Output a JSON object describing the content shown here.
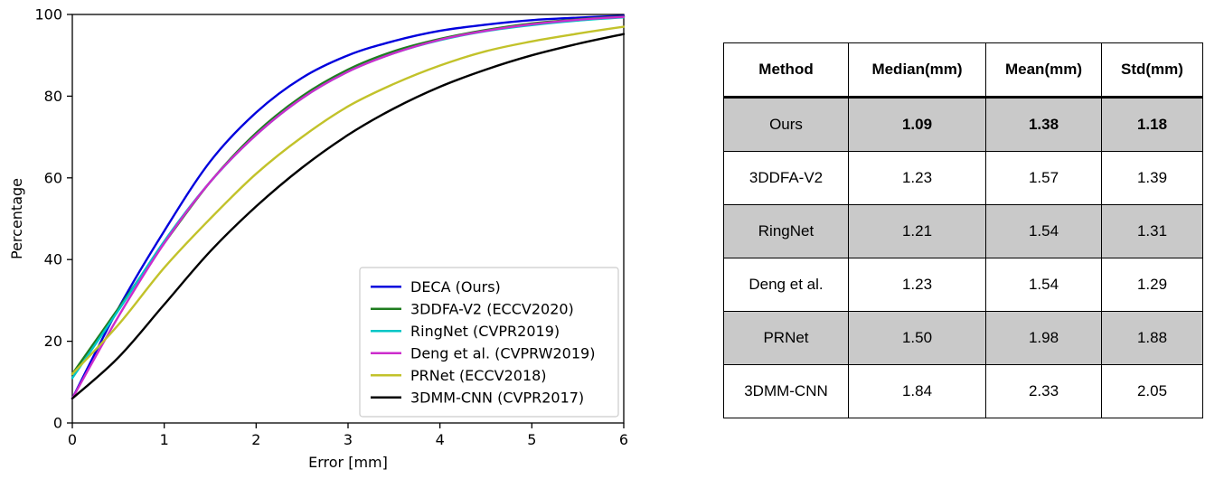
{
  "chart_data": {
    "type": "line",
    "title": "",
    "xlabel": "Error [mm]",
    "ylabel": "Percentage",
    "xlim": [
      0,
      6
    ],
    "ylim": [
      0,
      100
    ],
    "xticks": [
      0,
      1,
      2,
      3,
      4,
      5,
      6
    ],
    "yticks": [
      0,
      20,
      40,
      60,
      80,
      100
    ],
    "grid": false,
    "legend_position": "lower right",
    "x": [
      0,
      0.5,
      1.0,
      1.5,
      2.0,
      2.5,
      3.0,
      3.5,
      4.0,
      4.5,
      5.0,
      5.5,
      6.0
    ],
    "series": [
      {
        "name": "DECA (Ours)",
        "color": "#0000dd",
        "values": [
          6,
          28,
          47,
          64,
          76,
          84.5,
          90,
          93.5,
          96,
          97.5,
          98.6,
          99.2,
          99.7
        ]
      },
      {
        "name": "3DDFA-V2 (ECCV2020)",
        "color": "#1f7d1f",
        "values": [
          12,
          28,
          44,
          59,
          71,
          80,
          86.5,
          91,
          94,
          96.2,
          97.8,
          98.8,
          99.5
        ]
      },
      {
        "name": "RingNet (CVPR2019)",
        "color": "#00c6c6",
        "values": [
          11,
          27.5,
          44.5,
          59,
          70.5,
          79.5,
          86,
          90.5,
          93.7,
          95.9,
          97.4,
          98.5,
          99.3
        ]
      },
      {
        "name": "Deng et al. (CVPRW2019)",
        "color": "#cc2ccc",
        "values": [
          6,
          26,
          44,
          59,
          70.5,
          79.5,
          86,
          90.5,
          93.8,
          96,
          97.6,
          98.7,
          99.4
        ]
      },
      {
        "name": "PRNet (ECCV2018)",
        "color": "#c2c22a",
        "values": [
          12,
          24,
          38,
          50,
          61,
          70,
          77.5,
          83,
          87.5,
          91,
          93.4,
          95.3,
          97
        ]
      },
      {
        "name": "3DMM-CNN (CVPR2017)",
        "color": "#000000",
        "values": [
          6,
          16,
          29,
          42,
          53,
          62.5,
          70.5,
          77,
          82.3,
          86.5,
          90,
          92.8,
          95.2
        ]
      }
    ]
  },
  "table": {
    "columns": [
      "Method",
      "Median(mm)",
      "Mean(mm)",
      "Std(mm)"
    ],
    "highlight_color": "#c9c9c9",
    "rows": [
      {
        "method": "Ours",
        "median": "1.09",
        "mean": "1.38",
        "std": "1.18",
        "highlight": true,
        "bold": true
      },
      {
        "method": "3DDFA-V2",
        "median": "1.23",
        "mean": "1.57",
        "std": "1.39",
        "highlight": false,
        "bold": false
      },
      {
        "method": "RingNet",
        "median": "1.21",
        "mean": "1.54",
        "std": "1.31",
        "highlight": true,
        "bold": false
      },
      {
        "method": "Deng et al.",
        "median": "1.23",
        "mean": "1.54",
        "std": "1.29",
        "highlight": false,
        "bold": false
      },
      {
        "method": "PRNet",
        "median": "1.50",
        "mean": "1.98",
        "std": "1.88",
        "highlight": true,
        "bold": false
      },
      {
        "method": "3DMM-CNN",
        "median": "1.84",
        "mean": "2.33",
        "std": "2.05",
        "highlight": false,
        "bold": false
      }
    ]
  }
}
